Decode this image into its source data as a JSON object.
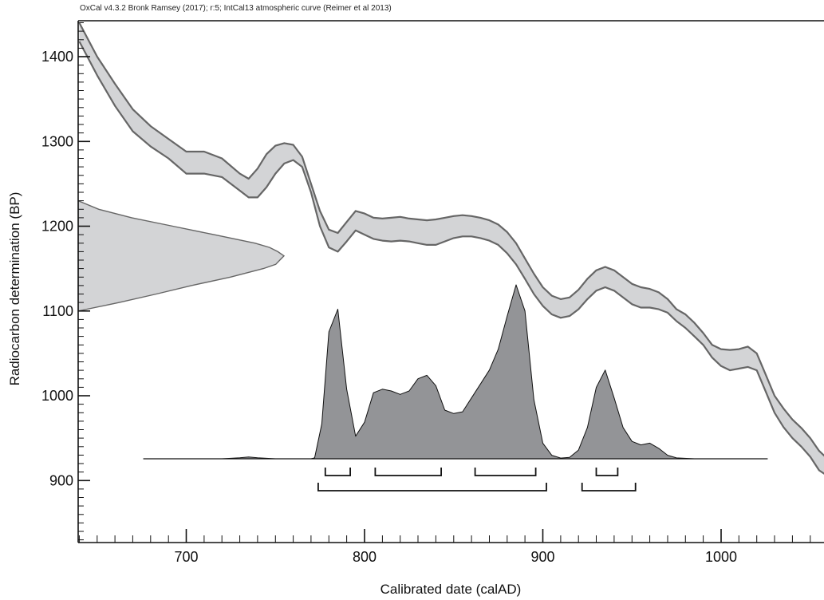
{
  "chart_data": {
    "type": "area",
    "header": "OxCal v4.3.2 Bronk Ramsey (2017); r:5; IntCal13 atmospheric curve (Reimer et al 2013)",
    "xlabel": "Calibrated date (calAD)",
    "ylabel": "Radiocarbon determination (BP)",
    "xlim": [
      640,
      1060
    ],
    "ylim": [
      820,
      1445
    ],
    "x_ticks": [
      700,
      800,
      900,
      1000
    ],
    "y_ticks": [
      900,
      1000,
      1100,
      1200,
      1300,
      1400
    ],
    "x_minor_step": 10,
    "y_minor_step": 10,
    "calibration_curve": {
      "x": [
        640,
        650,
        660,
        670,
        680,
        690,
        700,
        710,
        720,
        730,
        735,
        740,
        745,
        750,
        755,
        760,
        765,
        770,
        775,
        780,
        785,
        790,
        795,
        800,
        805,
        810,
        815,
        820,
        825,
        830,
        835,
        840,
        845,
        850,
        855,
        860,
        865,
        870,
        875,
        880,
        885,
        890,
        895,
        900,
        905,
        910,
        915,
        920,
        925,
        930,
        935,
        940,
        945,
        950,
        955,
        960,
        965,
        970,
        975,
        980,
        985,
        990,
        995,
        1000,
        1005,
        1010,
        1015,
        1020,
        1025,
        1030,
        1035,
        1040,
        1045,
        1050,
        1055,
        1060
      ],
      "upper": [
        1440,
        1400,
        1368,
        1338,
        1318,
        1303,
        1288,
        1288,
        1280,
        1262,
        1256,
        1268,
        1285,
        1295,
        1298,
        1296,
        1282,
        1250,
        1218,
        1196,
        1192,
        1205,
        1218,
        1215,
        1210,
        1209,
        1210,
        1211,
        1209,
        1208,
        1207,
        1208,
        1210,
        1212,
        1213,
        1212,
        1210,
        1207,
        1202,
        1193,
        1180,
        1162,
        1144,
        1128,
        1118,
        1114,
        1116,
        1125,
        1138,
        1148,
        1152,
        1148,
        1140,
        1132,
        1128,
        1126,
        1122,
        1114,
        1102,
        1096,
        1086,
        1074,
        1060,
        1055,
        1054,
        1055,
        1058,
        1050,
        1025,
        1000,
        985,
        972,
        962,
        950,
        935,
        925
      ],
      "lower": [
        1418,
        1378,
        1342,
        1312,
        1294,
        1280,
        1262,
        1262,
        1258,
        1242,
        1234,
        1234,
        1246,
        1262,
        1274,
        1278,
        1270,
        1240,
        1200,
        1175,
        1170,
        1182,
        1195,
        1190,
        1185,
        1183,
        1182,
        1183,
        1182,
        1180,
        1178,
        1178,
        1182,
        1186,
        1188,
        1188,
        1186,
        1183,
        1178,
        1168,
        1155,
        1138,
        1120,
        1106,
        1096,
        1092,
        1094,
        1102,
        1114,
        1124,
        1128,
        1124,
        1116,
        1108,
        1104,
        1104,
        1102,
        1098,
        1088,
        1080,
        1070,
        1060,
        1045,
        1035,
        1030,
        1032,
        1034,
        1030,
        1005,
        980,
        963,
        950,
        940,
        928,
        912,
        905
      ]
    },
    "measurement_distribution": {
      "y": [
        1100,
        1110,
        1120,
        1130,
        1140,
        1150,
        1155,
        1160,
        1165,
        1170,
        1175,
        1180,
        1190,
        1200,
        1210,
        1220,
        1230
      ],
      "value": [
        0.0,
        0.2,
        0.38,
        0.55,
        0.74,
        0.9,
        0.96,
        0.98,
        1.0,
        0.97,
        0.93,
        0.86,
        0.66,
        0.46,
        0.26,
        0.1,
        0.0
      ]
    },
    "calibrated_distribution": {
      "x": [
        676,
        720,
        730,
        735,
        740,
        750,
        760,
        770,
        772,
        776,
        780,
        785,
        790,
        795,
        800,
        805,
        810,
        815,
        820,
        825,
        830,
        835,
        840,
        845,
        850,
        855,
        860,
        865,
        870,
        875,
        880,
        885,
        890,
        895,
        900,
        905,
        910,
        915,
        920,
        925,
        930,
        935,
        940,
        945,
        950,
        955,
        960,
        965,
        970,
        975,
        985,
        1000,
        1026
      ],
      "value": [
        0,
        0,
        0.6,
        1,
        0.6,
        0,
        0,
        0,
        0.5,
        20,
        73,
        86,
        40,
        13,
        21,
        38,
        40,
        39,
        37,
        39,
        46,
        48,
        42,
        28,
        26,
        27,
        35,
        43,
        51,
        63,
        82,
        100,
        85,
        34,
        9,
        2,
        0.4,
        0.8,
        5,
        18,
        41,
        51,
        35,
        18,
        10,
        8,
        9,
        6,
        2,
        0.5,
        0,
        0,
        0
      ]
    },
    "range_68": [
      [
        778,
        792
      ],
      [
        806,
        843
      ],
      [
        862,
        896
      ],
      [
        930,
        942
      ]
    ],
    "range_95": [
      [
        774,
        902
      ],
      [
        922,
        952
      ]
    ]
  }
}
